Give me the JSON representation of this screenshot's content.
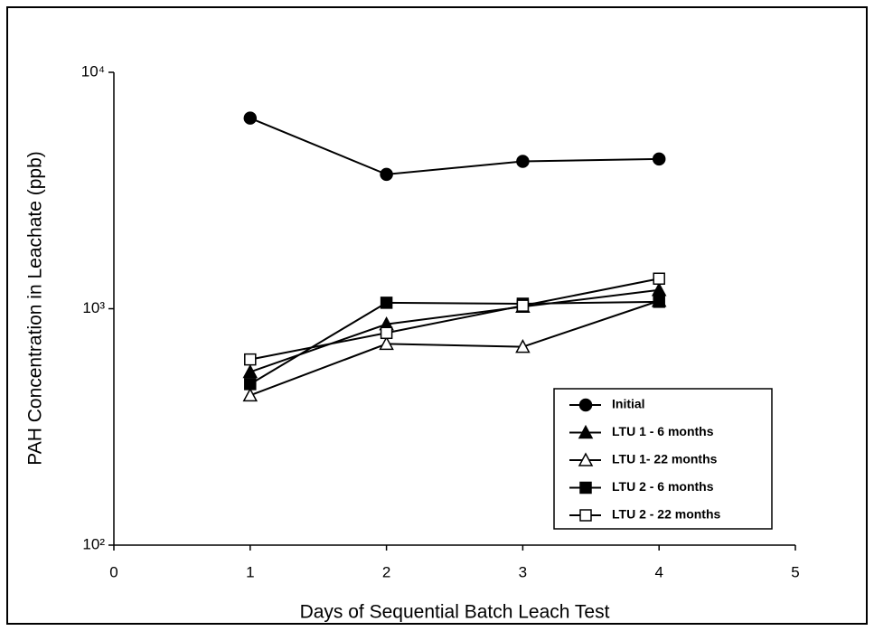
{
  "chart_data": {
    "type": "line",
    "x_label": "Days of Sequential Batch Leach Test",
    "y_label": "PAH Concentration in Leachate (ppb)",
    "x": [
      1,
      2,
      3,
      4
    ],
    "xlim": [
      0,
      5
    ],
    "xticks": [
      0,
      1,
      2,
      3,
      4,
      5
    ],
    "ylim": [
      100,
      10000
    ],
    "log_y": true,
    "yticks": [
      {
        "value": 100,
        "label": "10²"
      },
      {
        "value": 1000,
        "label": "10³"
      },
      {
        "value": 10000,
        "label": "10⁴"
      }
    ],
    "legend": "lower right",
    "series": [
      {
        "name": "Initial",
        "color": "#000000",
        "marker": "circle",
        "filled": true,
        "values": [
          6400,
          3700,
          4200,
          4300
        ]
      },
      {
        "name": "LTU 1 - 6 months",
        "color": "#000000",
        "marker": "triangle",
        "filled": true,
        "values": [
          540,
          860,
          1020,
          1200
        ]
      },
      {
        "name": "LTU 1- 22 months",
        "color": "#000000",
        "marker": "triangle",
        "filled": false,
        "values": [
          430,
          710,
          690,
          1080
        ]
      },
      {
        "name": "LTU 2 - 6 months",
        "color": "#000000",
        "marker": "square",
        "filled": true,
        "values": [
          480,
          1060,
          1050,
          1070
        ]
      },
      {
        "name": "LTU 2 - 22 months",
        "color": "#000000",
        "marker": "square",
        "filled": false,
        "values": [
          610,
          790,
          1030,
          1340
        ]
      }
    ]
  }
}
